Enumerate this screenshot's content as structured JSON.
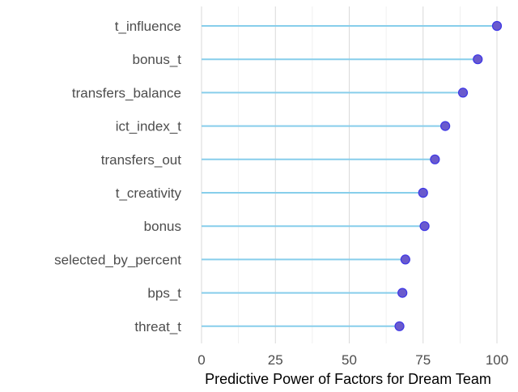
{
  "chart_data": {
    "type": "lollipop",
    "orientation": "horizontal",
    "categories": [
      "t_influence",
      "bonus_t",
      "transfers_balance",
      "ict_index_t",
      "transfers_out",
      "t_creativity",
      "bonus",
      "selected_by_percent",
      "bps_t",
      "threat_t"
    ],
    "values": [
      100,
      93.5,
      88.5,
      82.5,
      79,
      75,
      75.5,
      69,
      68,
      67
    ],
    "xlabel": "Predictive Power of Factors for Dream Team",
    "ylabel": "",
    "xlim": [
      0,
      100
    ],
    "xticks": [
      0,
      25,
      50,
      75,
      100
    ],
    "grid": "vertical",
    "colors": {
      "stem": "#87ceeb",
      "point_fill": "#6a5acd",
      "point_stroke": "#3d36e6"
    }
  }
}
